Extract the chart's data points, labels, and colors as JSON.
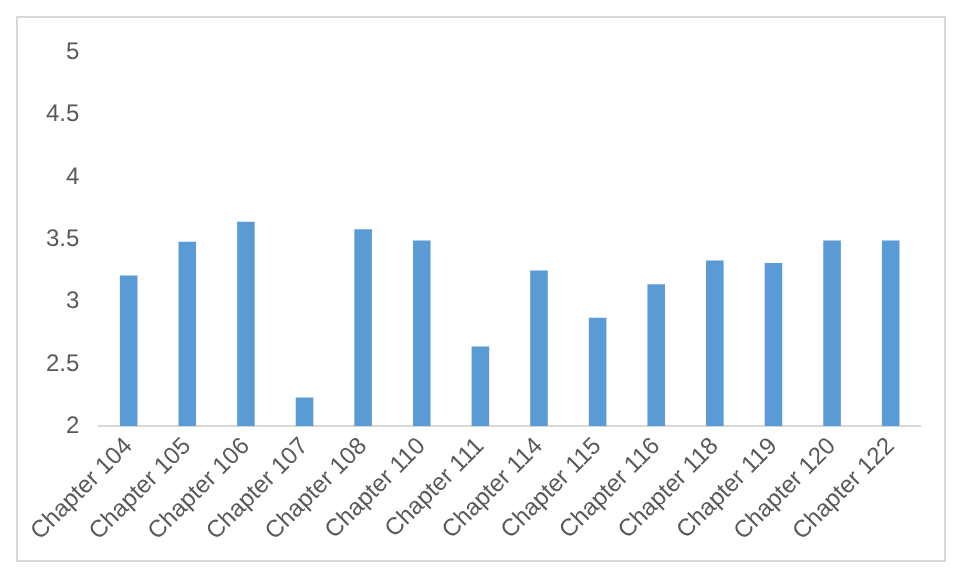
{
  "chart_data": {
    "type": "bar",
    "categories": [
      "Chapter 104",
      "Chapter 105",
      "Chapter 106",
      "Chapter 107",
      "Chapter 108",
      "Chapter 110",
      "Chapter 111",
      "Chapter 114",
      "Chapter 115",
      "Chapter 116",
      "Chapter 118",
      "Chapter 119",
      "Chapter 120",
      "Chapter 122"
    ],
    "values": [
      3.21,
      3.48,
      3.64,
      2.23,
      3.58,
      3.49,
      2.64,
      3.25,
      2.87,
      3.14,
      3.33,
      3.31,
      3.49,
      3.49
    ],
    "color": "#5b9bd5",
    "ylim": [
      2,
      5
    ],
    "yticks": [
      2,
      2.5,
      3,
      3.5,
      4,
      4.5,
      5
    ],
    "grid": false,
    "legend": false
  }
}
